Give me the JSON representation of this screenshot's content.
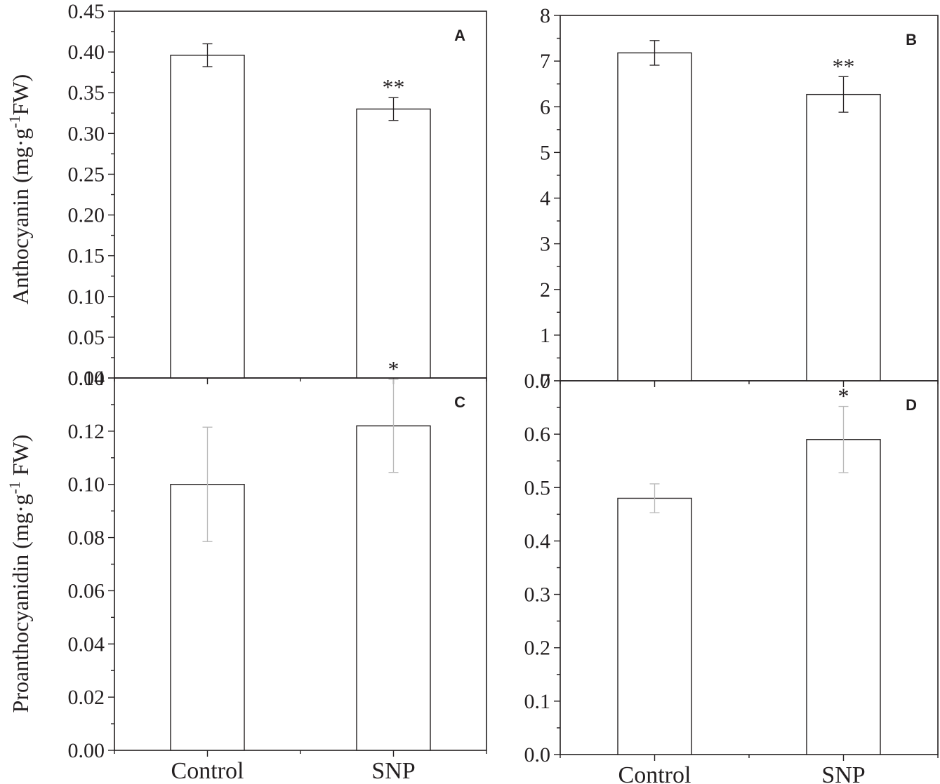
{
  "chart_data": [
    {
      "id": "A",
      "type": "bar",
      "panel_label": "A",
      "categories": [
        "Control",
        "SNP"
      ],
      "values": [
        0.396,
        0.33
      ],
      "errors": [
        0.014,
        0.014
      ],
      "significance": [
        "",
        "**"
      ],
      "ylabel_main": "Anthocyanin (mg·g",
      "ylabel_sup": "-1",
      "ylabel_tail": "FW)",
      "ylim": [
        0,
        0.45
      ],
      "yticks": [
        "0.00",
        "0.05",
        "0.10",
        "0.15",
        "0.20",
        "0.25",
        "0.30",
        "0.35",
        "0.40",
        "0.45"
      ],
      "show_x_labels": false,
      "error_bar_style": "dark"
    },
    {
      "id": "B",
      "type": "bar",
      "panel_label": "B",
      "categories": [
        "Control",
        "SNP"
      ],
      "values": [
        7.18,
        6.27
      ],
      "errors": [
        0.27,
        0.39
      ],
      "significance": [
        "",
        "**"
      ],
      "ylim": [
        0,
        8
      ],
      "yticks": [
        "0",
        "1",
        "2",
        "3",
        "4",
        "5",
        "6",
        "7",
        "8"
      ],
      "show_x_labels": false,
      "error_bar_style": "dark"
    },
    {
      "id": "C",
      "type": "bar",
      "panel_label": "C",
      "categories": [
        "Control",
        "SNP"
      ],
      "values": [
        0.1,
        0.122
      ],
      "errors": [
        0.0215,
        0.0175
      ],
      "significance": [
        "",
        "*"
      ],
      "ylabel_main": "Proanthocyanidin (mg·g",
      "ylabel_sup": "-1",
      "ylabel_tail": " FW)",
      "ylim": [
        0,
        0.14
      ],
      "yticks": [
        "0.00",
        "0.02",
        "0.04",
        "0.06",
        "0.08",
        "0.10",
        "0.12",
        "0.14"
      ],
      "show_x_labels": true,
      "error_bar_style": "light"
    },
    {
      "id": "D",
      "type": "bar",
      "panel_label": "D",
      "categories": [
        "Control",
        "SNP"
      ],
      "values": [
        0.48,
        0.59
      ],
      "errors": [
        0.027,
        0.062
      ],
      "significance": [
        "",
        "*"
      ],
      "ylim": [
        0,
        0.7
      ],
      "yticks": [
        "0.0",
        "0.1",
        "0.2",
        "0.3",
        "0.4",
        "0.5",
        "0.6",
        "0.7"
      ],
      "show_x_labels": true,
      "error_bar_style": "light"
    }
  ],
  "colors": {
    "axis": "#231f20",
    "bar_fill": "#ffffff",
    "error_dark": "#231f20",
    "error_light": "#b8b8b8"
  }
}
